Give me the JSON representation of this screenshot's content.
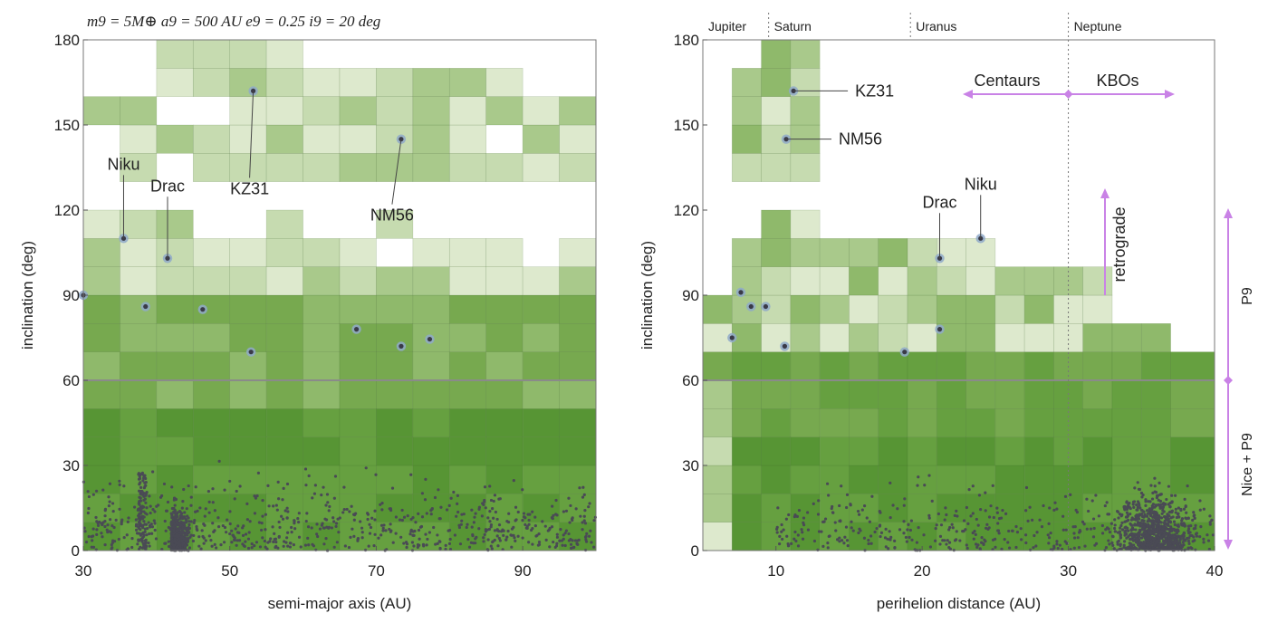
{
  "title_text": "m9 = 5M⊕   a9 = 500 AU   e9 = 0.25   i9 = 20 deg",
  "colors": {
    "grid_shades": [
      "#dde9cd",
      "#c6dbb0",
      "#a9c98b",
      "#8fb96b",
      "#77a94f",
      "#66a040",
      "#579534"
    ],
    "point": "#4a4a55",
    "marker_fill": "#3a3a48",
    "marker_halo": "#8fa9c9",
    "annotation": "#c982e6",
    "divider": "#8a8a8a"
  },
  "chart_data": [
    {
      "type": "heatmap",
      "xlabel": "semi-major axis (AU)",
      "ylabel": "inclination (deg)",
      "xlim": [
        30,
        100
      ],
      "ylim": [
        0,
        180
      ],
      "xticks": [
        30,
        50,
        70,
        90
      ],
      "yticks": [
        0,
        30,
        60,
        90,
        120,
        150,
        180
      ],
      "divider_y": 60,
      "objects": [
        {
          "name": "Niku",
          "x": 35.5,
          "y": 110
        },
        {
          "name": "Drac",
          "x": 41.5,
          "y": 103
        },
        {
          "name": "KZ31",
          "x": 53.2,
          "y": 162
        },
        {
          "name": "NM56",
          "x": 73.4,
          "y": 145
        }
      ],
      "unlabeled_objects": [
        [
          30,
          90
        ],
        [
          38.5,
          86
        ],
        [
          46.3,
          85
        ],
        [
          52.9,
          70
        ],
        [
          67.3,
          78
        ],
        [
          73.4,
          72
        ],
        [
          77.3,
          74.5
        ]
      ]
    },
    {
      "type": "heatmap",
      "xlabel": "perihelion distance (AU)",
      "ylabel": "inclination (deg)",
      "xlim": [
        5,
        40
      ],
      "ylim": [
        0,
        180
      ],
      "xticks": [
        10,
        20,
        30,
        40
      ],
      "yticks": [
        0,
        30,
        60,
        90,
        120,
        150,
        180
      ],
      "divider_y": 60,
      "planet_lines": [
        {
          "name": "Jupiter",
          "x": 5.0
        },
        {
          "name": "Saturn",
          "x": 9.5
        },
        {
          "name": "Uranus",
          "x": 19.2
        },
        {
          "name": "Neptune",
          "x": 30.0
        }
      ],
      "objects": [
        {
          "name": "KZ31",
          "x": 11.2,
          "y": 162
        },
        {
          "name": "NM56",
          "x": 10.7,
          "y": 145
        },
        {
          "name": "Drac",
          "x": 21.2,
          "y": 103
        },
        {
          "name": "Niku",
          "x": 24.0,
          "y": 110
        }
      ],
      "unlabeled_objects": [
        [
          7.0,
          75
        ],
        [
          7.6,
          91
        ],
        [
          8.3,
          86
        ],
        [
          9.3,
          86
        ],
        [
          10.6,
          72
        ],
        [
          18.8,
          70
        ],
        [
          21.2,
          78
        ]
      ],
      "annotations": {
        "centaurs": "Centaurs",
        "kbos": "KBOs",
        "retrograde": "retrograde",
        "p9": "P9",
        "nice_p9": "Nice + P9"
      }
    }
  ]
}
